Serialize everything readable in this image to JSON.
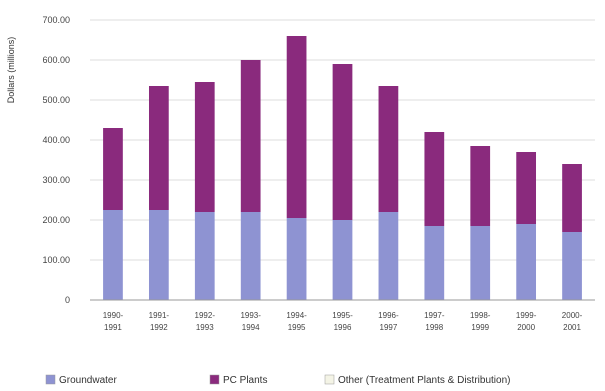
{
  "chart_data": {
    "type": "bar",
    "stacked": true,
    "ylabel": "Dollars (millions)",
    "ylim": [
      0,
      700
    ],
    "yticks": [
      "0",
      "100.00",
      "200.00",
      "300.00",
      "400.00",
      "500.00",
      "600.00",
      "700.00"
    ],
    "categories": [
      [
        "1990-",
        "1991"
      ],
      [
        "1991-",
        "1992"
      ],
      [
        "1992-",
        "1993"
      ],
      [
        "1993-",
        "1994"
      ],
      [
        "1994-",
        "1995"
      ],
      [
        "1995-",
        "1996"
      ],
      [
        "1996-",
        "1997"
      ],
      [
        "1997-",
        "1998"
      ],
      [
        "1998-",
        "1999"
      ],
      [
        "1999-",
        "2000"
      ],
      [
        "2000-",
        "2001"
      ]
    ],
    "series": [
      {
        "name": "Groundwater",
        "color": "#8e93d2",
        "values": [
          225,
          225,
          220,
          220,
          205,
          200,
          220,
          185,
          185,
          190,
          170
        ]
      },
      {
        "name": "PC Plants",
        "color": "#8a2a7d",
        "values": [
          205,
          310,
          325,
          380,
          455,
          390,
          315,
          235,
          200,
          180,
          170
        ]
      },
      {
        "name": "Other (Treatment Plants & Distribution)",
        "color": "#f4f4e6",
        "values": [
          0,
          0,
          0,
          0,
          0,
          0,
          0,
          0,
          0,
          0,
          0
        ]
      }
    ],
    "grid": true,
    "legend_position": "bottom"
  }
}
